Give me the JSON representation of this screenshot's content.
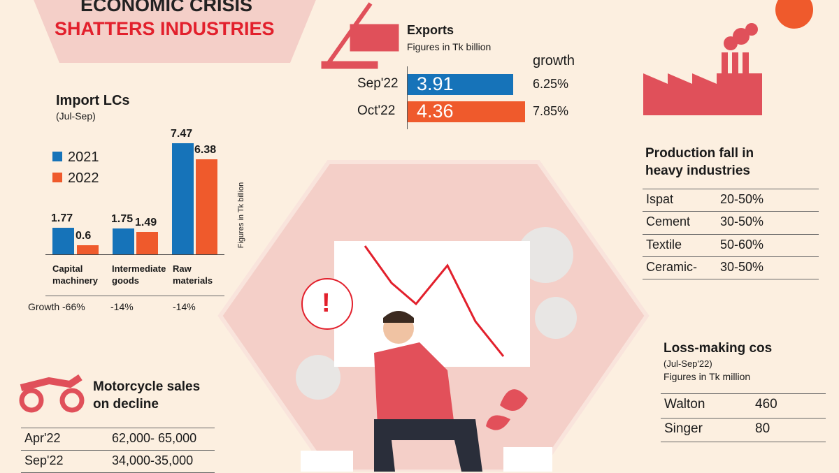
{
  "title": {
    "line1": "ECONOMIC CRISIS",
    "line2": "SHATTERS INDUSTRIES"
  },
  "colors": {
    "series_2021": "#1673b9",
    "series_2022": "#ef5a2c",
    "accent_red": "#e2202c",
    "icon_red": "#e0505a",
    "hex_pink": "#f4cfc8"
  },
  "chart_data": [
    {
      "type": "bar",
      "title": "Import LCs",
      "subtitle": "(Jul-Sep)",
      "ylabel": "Figures in Tk billion",
      "categories": [
        "Capital machinery",
        "Intermediate goods",
        "Raw materials"
      ],
      "category_lines": [
        [
          "Capital",
          "machinery"
        ],
        [
          "Intermediate",
          "goods"
        ],
        [
          "Raw",
          "materials"
        ]
      ],
      "series": [
        {
          "name": "2021",
          "values": [
            1.77,
            1.75,
            7.47
          ],
          "labels": [
            "1.77",
            "1.75",
            "7.47"
          ]
        },
        {
          "name": "2022",
          "values": [
            0.6,
            1.49,
            6.38
          ],
          "labels": [
            "0.6",
            "1.49",
            "6.38"
          ]
        }
      ],
      "growth": [
        "Growth -66%",
        "-14%",
        "-14%"
      ],
      "legend": "top-left"
    },
    {
      "type": "bar",
      "orientation": "horizontal",
      "title": "Exports",
      "subtitle": "Figures in Tk billion",
      "growth_header": "growth",
      "categories": [
        "Sep'22",
        "Oct'22"
      ],
      "values": [
        3.91,
        4.36
      ],
      "labels": [
        "3.91",
        "4.36"
      ],
      "growth": [
        "6.25%",
        "7.85%"
      ]
    }
  ],
  "production": {
    "title_l1": "Production fall in",
    "title_l2": "heavy industries",
    "rows": [
      [
        "Ispat",
        "20-50%"
      ],
      [
        "Cement",
        "30-50%"
      ],
      [
        "Textile",
        "50-60%"
      ],
      [
        "Ceramic-",
        "30-50%"
      ]
    ]
  },
  "loss": {
    "title": "Loss-making cos",
    "sub1": "(Jul-Sep'22)",
    "sub2": "Figures in Tk million",
    "rows": [
      [
        "Walton",
        "460"
      ],
      [
        "Singer",
        "80"
      ]
    ]
  },
  "motorcycle": {
    "title_l1": "Motorcycle sales",
    "title_l2": "on decline",
    "rows": [
      [
        "Apr'22",
        "62,000- 65,000"
      ],
      [
        "Sep'22",
        "34,000-35,000"
      ]
    ]
  },
  "illustration": {
    "alert": "!"
  }
}
